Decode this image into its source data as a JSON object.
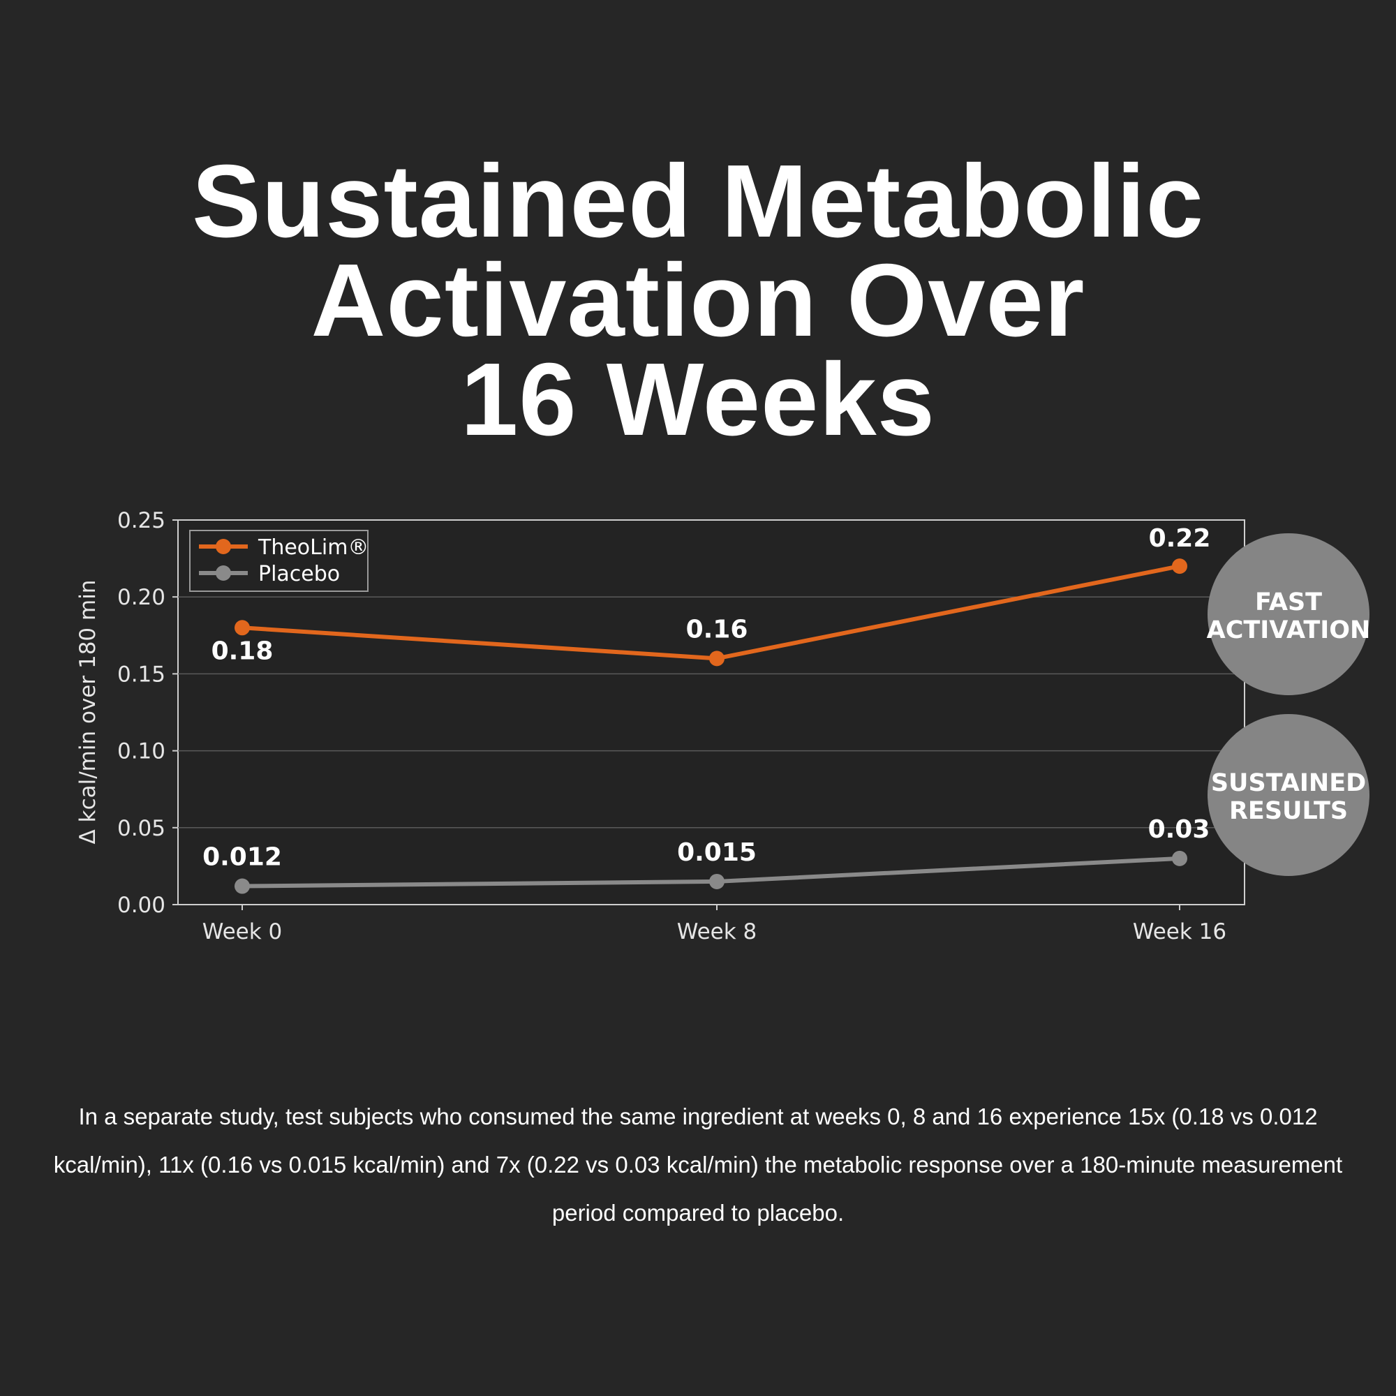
{
  "headline": {
    "line1": "Sustained Metabolic",
    "line2": "Activation Over",
    "line3": "16 Weeks"
  },
  "chart_data": {
    "type": "line",
    "categories": [
      "Week 0",
      "Week 8",
      "Week 16"
    ],
    "series": [
      {
        "name": "TheoLim®",
        "values": [
          0.18,
          0.16,
          0.22
        ],
        "labels": [
          "0.18",
          "0.16",
          "0.22"
        ],
        "color": "#e2671d"
      },
      {
        "name": "Placebo",
        "values": [
          0.012,
          0.015,
          0.03
        ],
        "labels": [
          "0.012",
          "0.015",
          "0.03"
        ],
        "color": "#8a8a8a"
      }
    ],
    "ylabel": "Δ kcal/min over 180 min",
    "xlabel": "",
    "ylim": [
      0,
      0.25
    ],
    "yticks": [
      "0.00",
      "0.05",
      "0.10",
      "0.15",
      "0.20",
      "0.25"
    ],
    "grid": true,
    "legend_position": "top-left",
    "badges": [
      {
        "line1": "FAST",
        "line2": "ACTIVATION"
      },
      {
        "line1": "SUSTAINED",
        "line2": "RESULTS"
      }
    ]
  },
  "caption": "In a separate study, test subjects who consumed the same ingredient at weeks 0, 8 and 16 experience 15x (0.18 vs 0.012 kcal/min), 11x (0.16 vs 0.015 kcal/min) and 7x (0.22 vs 0.03 kcal/min) the metabolic response over a 180-minute measurement period compared to placebo.",
  "colors": {
    "background": "#262626",
    "plot_background": "#232323",
    "theolim": "#e2671d",
    "placebo": "#8a8a8a",
    "badge": "#858585"
  }
}
